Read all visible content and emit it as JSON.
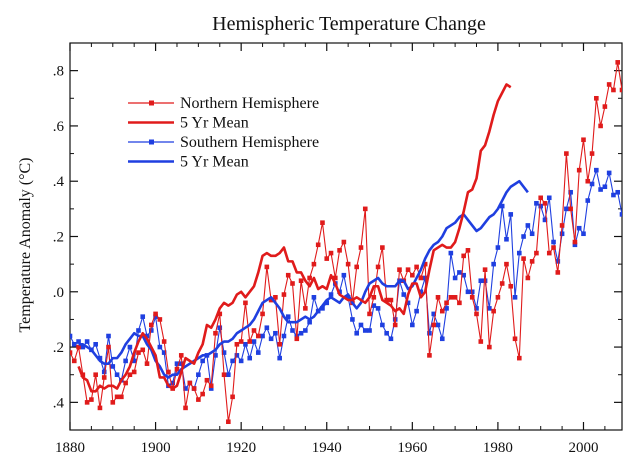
{
  "chart_data": {
    "type": "line",
    "title": "Hemispheric Temperature Change",
    "xlabel": "",
    "ylabel": "Temperature Anomaly (°C)",
    "xlim": [
      1880,
      2009
    ],
    "ylim": [
      -0.5,
      0.9
    ],
    "x_ticks": [
      1880,
      1900,
      1920,
      1940,
      1960,
      1980,
      2000
    ],
    "y_ticks": [
      {
        "value": 0.8,
        "label": ".8"
      },
      {
        "value": 0.6,
        "label": ".6"
      },
      {
        "value": 0.4,
        "label": ".4"
      },
      {
        "value": 0.2,
        "label": ".2"
      },
      {
        "value": 0.0,
        "label": ".0"
      },
      {
        "value": -0.2,
        "label": ".2"
      },
      {
        "value": -0.4,
        "label": ".4"
      }
    ],
    "legend_position": "top-left",
    "grid": false,
    "colors": {
      "northern": "#e01b1b",
      "southern": "#1f3fe0"
    },
    "series": [
      {
        "name": "Northern Hemisphere",
        "kind": "annual",
        "color": "#e01b1b",
        "start_year": 1880,
        "values": [
          -0.22,
          -0.25,
          -0.2,
          -0.3,
          -0.4,
          -0.39,
          -0.3,
          -0.42,
          -0.31,
          -0.2,
          -0.4,
          -0.38,
          -0.38,
          -0.33,
          -0.3,
          -0.29,
          -0.22,
          -0.21,
          -0.26,
          -0.12,
          -0.08,
          -0.1,
          -0.18,
          -0.29,
          -0.35,
          -0.28,
          -0.23,
          -0.42,
          -0.33,
          -0.35,
          -0.39,
          -0.37,
          -0.32,
          -0.34,
          -0.15,
          -0.08,
          -0.3,
          -0.47,
          -0.38,
          -0.19,
          -0.18,
          -0.04,
          -0.18,
          -0.14,
          -0.16,
          -0.08,
          0.09,
          -0.03,
          -0.02,
          -0.19,
          -0.01,
          0.06,
          0.03,
          -0.17,
          0.04,
          -0.06,
          0.05,
          0.1,
          0.17,
          0.25,
          0.12,
          0.14,
          0.05,
          0.15,
          0.18,
          0.1,
          -0.04,
          0.09,
          0.16,
          0.3,
          -0.08,
          -0.02,
          0.09,
          0.16,
          -0.03,
          -0.03,
          -0.12,
          0.08,
          0.04,
          0.08,
          0.06,
          0.09,
          0.05,
          0.1,
          -0.23,
          -0.12,
          -0.02,
          -0.07,
          -0.04,
          -0.02,
          -0.02,
          -0.04,
          0.13,
          0.15,
          -0.02,
          -0.08,
          -0.18,
          0.08,
          -0.2,
          -0.07,
          -0.02,
          0.03,
          0.1,
          0.02,
          -0.17,
          -0.24,
          0.12,
          0.05,
          0.11,
          0.14,
          0.34,
          0.32,
          0.14,
          0.16,
          0.07,
          0.24,
          0.5,
          0.3,
          0.18,
          0.44,
          0.55,
          0.4,
          0.5,
          0.7,
          0.6,
          0.67,
          0.75,
          0.73,
          0.83,
          0.73,
          0.78,
          0.6
        ]
      },
      {
        "name": "5  Yr Mean",
        "kind": "mean",
        "color": "#e01b1b",
        "start_year": 1882,
        "values": [
          -0.27,
          -0.31,
          -0.32,
          -0.36,
          -0.36,
          -0.34,
          -0.35,
          -0.34,
          -0.34,
          -0.35,
          -0.32,
          -0.3,
          -0.27,
          -0.22,
          -0.18,
          -0.15,
          -0.17,
          -0.2,
          -0.23,
          -0.31,
          -0.31,
          -0.34,
          -0.35,
          -0.34,
          -0.29,
          -0.24,
          -0.25,
          -0.26,
          -0.22,
          -0.19,
          -0.12,
          -0.13,
          -0.1,
          -0.06,
          -0.04,
          -0.05,
          -0.04,
          -0.01,
          0.0,
          -0.02,
          0.0,
          0.02,
          0.07,
          0.13,
          0.14,
          0.13,
          0.13,
          0.14,
          0.16,
          0.11,
          0.11,
          0.07,
          0.07,
          0.04,
          0.02,
          0.05,
          0.01,
          0.02,
          0.01,
          0.06,
          0.03,
          -0.01,
          -0.02,
          -0.03,
          -0.03,
          -0.02,
          -0.03,
          -0.04,
          -0.02,
          0.02,
          0.02,
          -0.03,
          -0.04,
          -0.05,
          -0.07,
          -0.06,
          -0.08,
          -0.01,
          0.03,
          0.03,
          -0.02,
          0.0,
          0.08,
          0.15,
          0.16,
          0.17,
          0.16,
          0.16,
          0.18,
          0.23,
          0.29,
          0.36,
          0.37,
          0.41,
          0.51,
          0.53,
          0.58,
          0.64,
          0.69,
          0.72,
          0.75,
          0.74
        ]
      },
      {
        "name": "Southern Hemisphere",
        "kind": "annual",
        "color": "#1f3fe0",
        "start_year": 1880,
        "values": [
          -0.16,
          -0.19,
          -0.18,
          -0.2,
          -0.18,
          -0.21,
          -0.19,
          -0.24,
          -0.29,
          -0.16,
          -0.27,
          -0.3,
          -0.32,
          -0.25,
          -0.2,
          -0.25,
          -0.14,
          -0.09,
          -0.16,
          -0.14,
          -0.09,
          -0.2,
          -0.22,
          -0.34,
          -0.33,
          -0.26,
          -0.26,
          -0.35,
          -0.33,
          -0.35,
          -0.3,
          -0.25,
          -0.23,
          -0.35,
          -0.23,
          -0.13,
          -0.22,
          -0.3,
          -0.25,
          -0.23,
          -0.25,
          -0.19,
          -0.24,
          -0.18,
          -0.22,
          -0.16,
          -0.13,
          -0.17,
          -0.15,
          -0.24,
          -0.16,
          -0.09,
          -0.14,
          -0.16,
          -0.15,
          -0.14,
          -0.11,
          -0.02,
          -0.07,
          -0.06,
          -0.04,
          -0.01,
          0.03,
          0.0,
          0.06,
          -0.02,
          -0.1,
          -0.15,
          -0.12,
          -0.14,
          -0.14,
          -0.05,
          -0.06,
          -0.12,
          -0.15,
          -0.17,
          -0.1,
          0.04,
          -0.01,
          -0.04,
          -0.12,
          -0.07,
          0.0,
          0.05,
          -0.15,
          -0.08,
          -0.12,
          -0.17,
          -0.06,
          0.14,
          0.05,
          0.07,
          0.06,
          0.0,
          0.0,
          -0.06,
          0.04,
          0.04,
          -0.06,
          0.1,
          0.16,
          0.31,
          0.19,
          0.28,
          -0.02,
          0.14,
          0.2,
          0.24,
          0.21,
          0.32,
          0.31,
          0.26,
          0.34,
          0.18,
          0.11,
          0.21,
          0.3,
          0.36,
          0.17,
          0.23,
          0.21,
          0.33,
          0.39,
          0.44,
          0.37,
          0.38,
          0.43,
          0.35,
          0.36,
          0.28
        ]
      },
      {
        "name": "5  Yr Mean",
        "kind": "mean",
        "color": "#1f3fe0",
        "start_year": 1882,
        "values": [
          -0.19,
          -0.19,
          -0.2,
          -0.21,
          -0.23,
          -0.25,
          -0.26,
          -0.26,
          -0.24,
          -0.24,
          -0.22,
          -0.19,
          -0.17,
          -0.15,
          -0.16,
          -0.16,
          -0.19,
          -0.21,
          -0.25,
          -0.27,
          -0.3,
          -0.31,
          -0.3,
          -0.3,
          -0.28,
          -0.27,
          -0.26,
          -0.25,
          -0.24,
          -0.23,
          -0.23,
          -0.22,
          -0.21,
          -0.19,
          -0.18,
          -0.18,
          -0.17,
          -0.15,
          -0.14,
          -0.13,
          -0.12,
          -0.1,
          -0.07,
          -0.04,
          -0.03,
          -0.02,
          -0.04,
          -0.06,
          -0.09,
          -0.11,
          -0.11,
          -0.11,
          -0.1,
          -0.09,
          -0.1,
          -0.09,
          -0.07,
          -0.05,
          -0.03,
          -0.02,
          -0.03,
          -0.04,
          -0.02,
          -0.01,
          -0.04,
          -0.06,
          -0.04,
          0.0,
          0.03,
          0.04,
          0.05,
          0.03,
          0.02,
          0.02,
          0.02,
          0.04,
          0.04,
          0.01,
          0.02,
          0.05,
          0.08,
          0.12,
          0.15,
          0.17,
          0.18,
          0.2,
          0.23,
          0.24,
          0.25,
          0.27,
          0.28,
          0.26,
          0.24,
          0.22,
          0.23,
          0.25,
          0.27,
          0.28,
          0.3,
          0.33,
          0.36,
          0.38,
          0.39,
          0.4,
          0.38,
          0.36
        ]
      }
    ]
  }
}
